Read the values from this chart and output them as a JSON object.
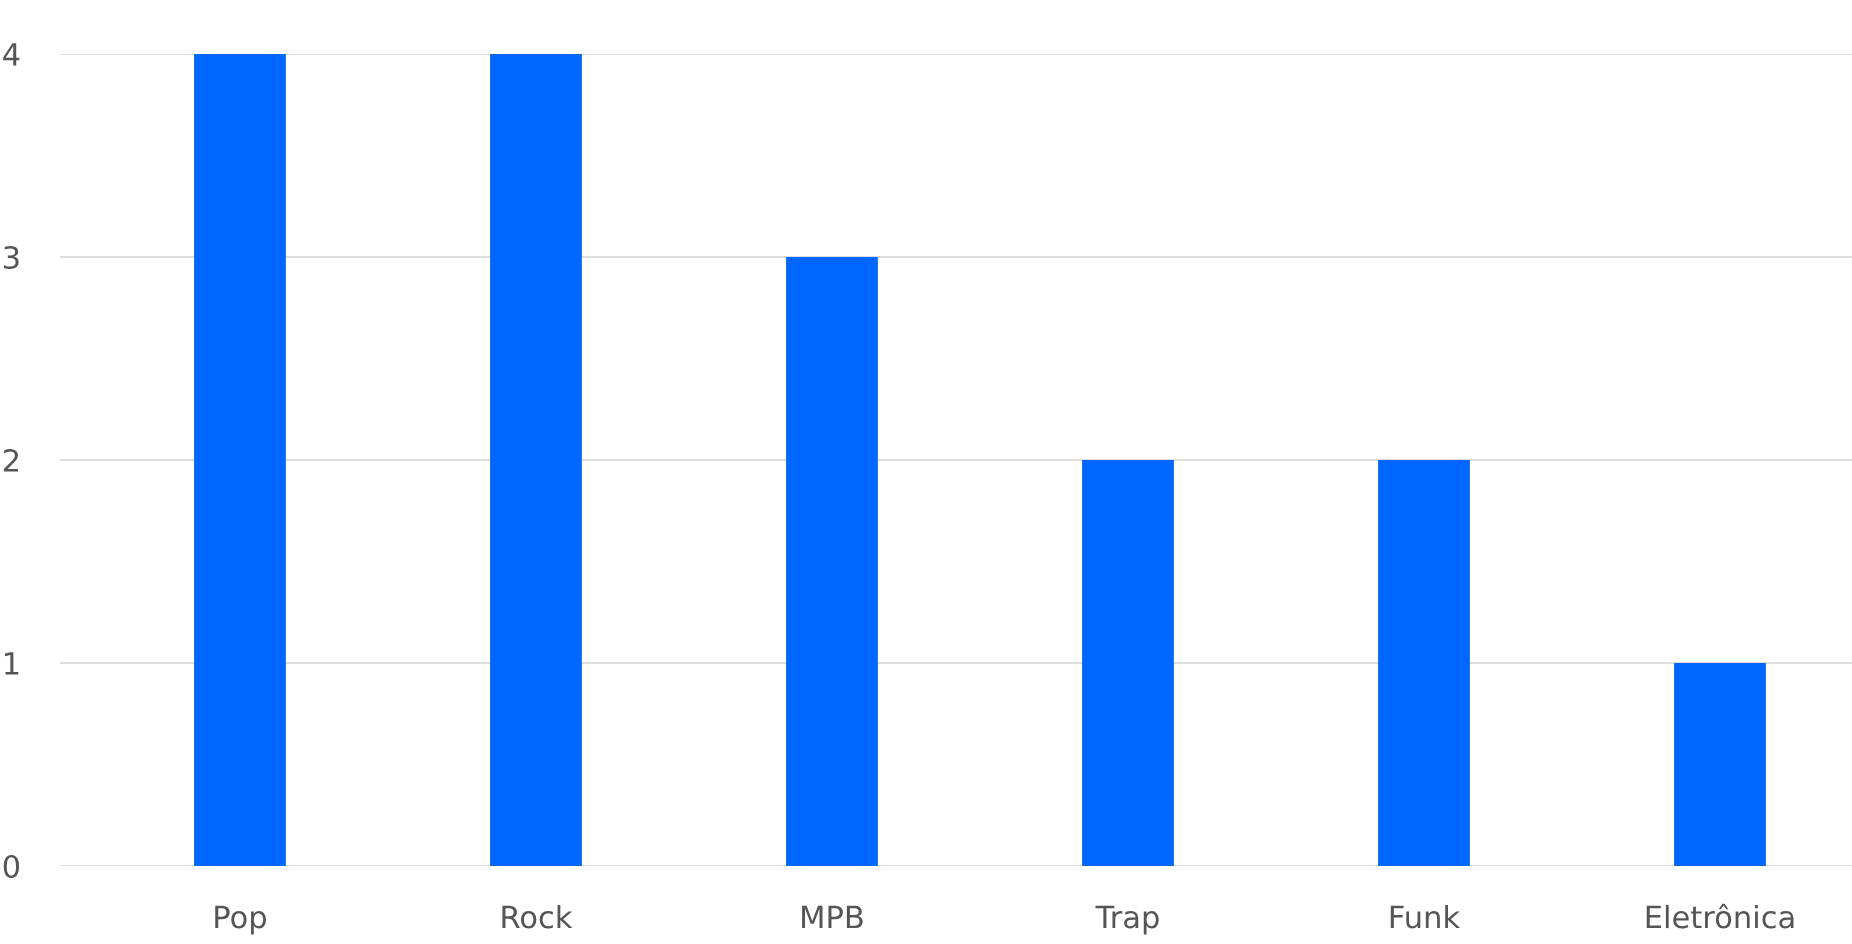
{
  "chart_data": {
    "type": "bar",
    "categories": [
      "Pop",
      "Rock",
      "MPB",
      "Trap",
      "Funk",
      "Eletrônica"
    ],
    "values": [
      4,
      4,
      3,
      2,
      2,
      1
    ],
    "color": "#0066ff",
    "ylim": [
      0,
      4
    ],
    "yticks": [
      0,
      1,
      2,
      3,
      4
    ],
    "grid": "y",
    "legend": false
  }
}
